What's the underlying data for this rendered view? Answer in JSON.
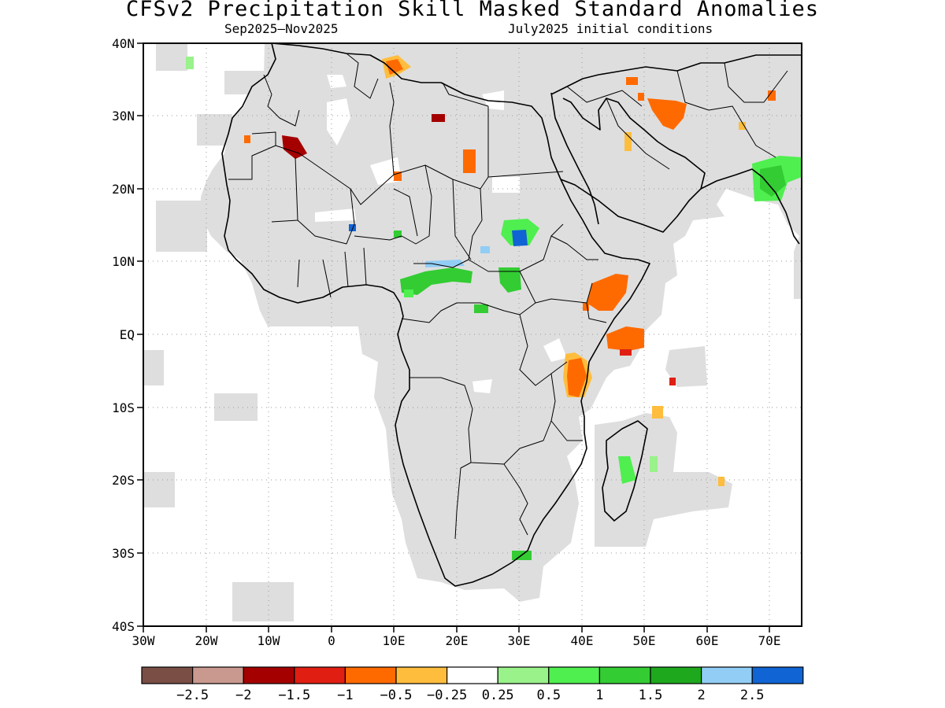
{
  "title": "CFSv2 Precipitation Skill Masked Standard Anomalies",
  "subtitle_left": "Sep2025–Nov2025",
  "subtitle_right": "July2025 initial conditions",
  "lon_labels": [
    "30W",
    "20W",
    "10W",
    "0",
    "10E",
    "20E",
    "30E",
    "40E",
    "50E",
    "60E",
    "70E"
  ],
  "lat_labels": [
    "40N",
    "30N",
    "20N",
    "10N",
    "EQ",
    "10S",
    "20S",
    "30S",
    "40S"
  ],
  "colorbar": {
    "colors": [
      "#7a4e45",
      "#c9998f",
      "#a50000",
      "#e01e12",
      "#ff6a00",
      "#ffbd3e",
      "#ffffff",
      "#99f28a",
      "#4fef4f",
      "#33cc33",
      "#1ea81e",
      "#92cdf5",
      "#1064d4"
    ],
    "labels": [
      "−2.5",
      "−2",
      "−1.5",
      "−1",
      "−0.5",
      "−0.25",
      "0.25",
      "0.5",
      "1",
      "1.5",
      "2",
      "2.5"
    ]
  },
  "map_colors": {
    "mask": "#dedede",
    "land_line": "#000000",
    "grid": "#9a9a9a"
  },
  "anomalies": [
    {
      "region": "central-africa-west",
      "value": 1.5
    },
    {
      "region": "sahel-lake-chad",
      "value": 2.5
    },
    {
      "region": "south-sudan",
      "value": 1.5
    },
    {
      "region": "sudan-center",
      "value": 2.5
    },
    {
      "region": "ethiopia-somalia",
      "value": -1
    },
    {
      "region": "east-africa-coast",
      "value": -1
    },
    {
      "region": "indian-ocean-somalia",
      "value": -1
    },
    {
      "region": "west-india",
      "value": 1.5
    },
    {
      "region": "madagascar",
      "value": 1
    },
    {
      "region": "iran",
      "value": -1
    },
    {
      "region": "western-sahara",
      "value": -1.5
    },
    {
      "region": "libya",
      "value": -1.5
    },
    {
      "region": "tunisia",
      "value": -0.5
    }
  ]
}
